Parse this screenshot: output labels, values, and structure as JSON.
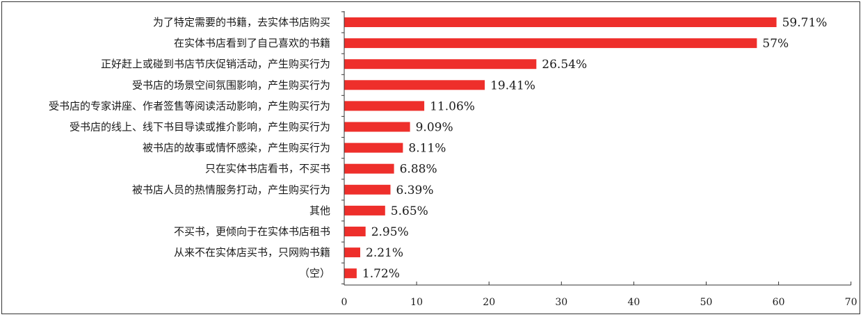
{
  "chart_data": {
    "type": "bar",
    "orientation": "horizontal",
    "title": "",
    "xlabel": "",
    "ylabel": "",
    "xlim": [
      0,
      70
    ],
    "xticks": [
      0,
      10,
      20,
      30,
      40,
      50,
      60,
      70
    ],
    "grid": false,
    "legend": "none",
    "bar_color": "#ee2f2b",
    "categories": [
      "为了特定需要的书籍，去实体书店购买",
      "在实体书店看到了自己喜欢的书籍",
      "正好赶上或碰到书店节庆促销活动，产生购买行为",
      "受书店的场景空间氛围影响，产生购买行为",
      "受书店的专家讲座、作者签售等阅读活动影响，产生购买行为",
      "受书店的线上、线下书目导读或推介影响，产生购买行为",
      "被书店的故事或情怀感染，产生购买行为",
      "只在实体书店看书，不买书",
      "被书店人员的热情服务打动，产生购买行为",
      "其他",
      "不买书，更倾向于在实体书店租书",
      "从来不在实体店买书，只网购书籍",
      "（空）"
    ],
    "values": [
      59.71,
      57,
      26.54,
      19.41,
      11.06,
      9.09,
      8.11,
      6.88,
      6.39,
      5.65,
      2.95,
      2.21,
      1.72
    ],
    "value_labels": [
      "59.71%",
      "57%",
      "26.54%",
      "19.41%",
      "11.06%",
      "9.09%",
      "8.11%",
      "6.88%",
      "6.39%",
      "5.65%",
      "2.95%",
      "2.21%",
      "1.72%"
    ]
  }
}
